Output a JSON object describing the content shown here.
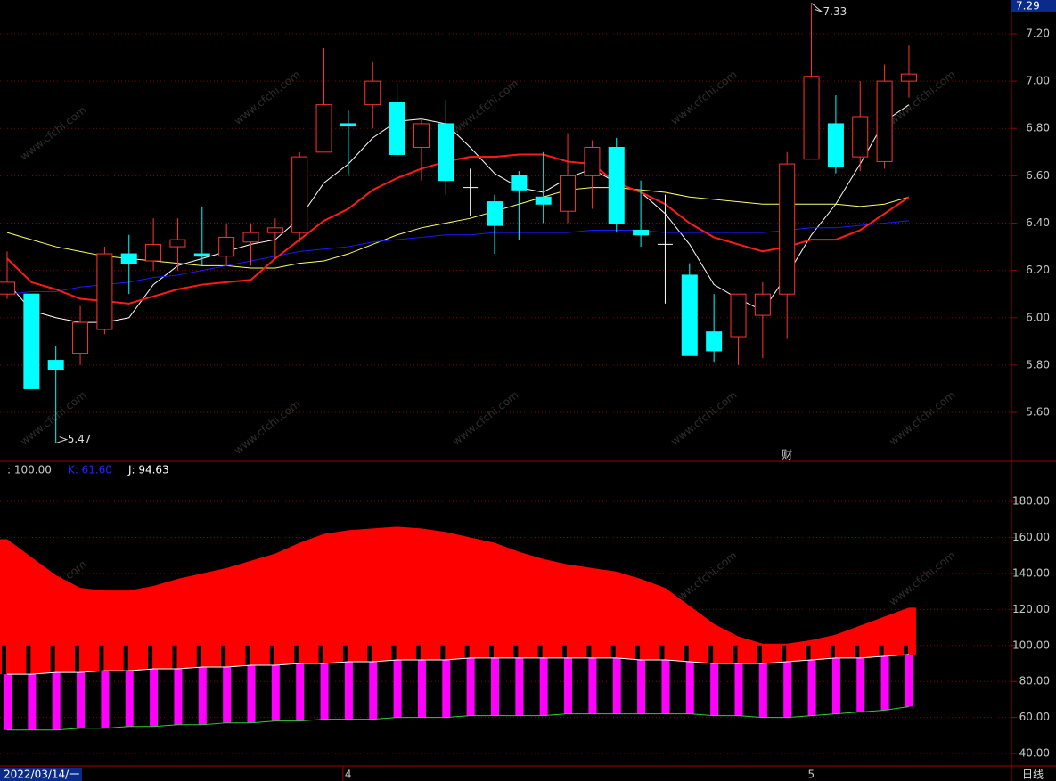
{
  "chart_data": [
    {
      "type": "candlestick",
      "open": [
        6.1,
        6.1,
        5.82,
        5.85,
        5.95,
        6.27,
        6.24,
        6.3,
        6.27,
        6.26,
        6.32,
        6.36,
        6.36,
        6.7,
        6.82,
        6.9,
        6.91,
        6.72,
        6.82,
        6.55,
        6.49,
        6.6,
        6.51,
        6.45,
        6.6,
        6.72,
        6.37,
        6.31,
        6.18,
        5.94,
        5.92,
        6.01,
        6.1,
        6.67,
        6.82,
        6.68,
        6.66,
        7.0
      ],
      "high": [
        6.28,
        6.1,
        5.88,
        6.05,
        6.3,
        6.35,
        6.42,
        6.42,
        6.47,
        6.4,
        6.4,
        6.42,
        6.7,
        7.14,
        6.88,
        7.08,
        6.99,
        6.84,
        6.92,
        6.63,
        6.52,
        6.62,
        6.7,
        6.78,
        6.75,
        6.76,
        6.58,
        6.52,
        6.23,
        6.1,
        6.1,
        6.15,
        6.7,
        7.33,
        6.94,
        7.0,
        7.07,
        7.15
      ],
      "low": [
        6.08,
        5.7,
        5.47,
        5.8,
        5.93,
        6.1,
        6.2,
        6.2,
        6.22,
        6.22,
        6.22,
        6.25,
        6.32,
        6.7,
        6.6,
        6.8,
        6.68,
        6.58,
        6.52,
        6.43,
        6.27,
        6.33,
        6.4,
        6.4,
        6.46,
        6.36,
        6.3,
        6.06,
        5.84,
        5.81,
        5.8,
        5.83,
        5.91,
        6.67,
        6.61,
        6.62,
        6.63,
        6.93
      ],
      "close": [
        6.15,
        5.7,
        5.78,
        5.98,
        6.27,
        6.23,
        6.31,
        6.33,
        6.26,
        6.34,
        6.36,
        6.38,
        6.68,
        6.9,
        6.81,
        7.0,
        6.69,
        6.82,
        6.58,
        6.55,
        6.39,
        6.54,
        6.48,
        6.6,
        6.72,
        6.4,
        6.35,
        6.31,
        5.84,
        5.86,
        6.1,
        6.1,
        6.65,
        7.02,
        6.64,
        6.85,
        7.0,
        7.03
      ],
      "up_color": "#ff3232",
      "down_color": "#00ffff",
      "flat_color": "#ffffff",
      "series": [
        {
          "color": "#ffffff",
          "width": 1,
          "values": [
            6.15,
            6.03,
            6.0,
            5.98,
            5.98,
            6.0,
            6.14,
            6.22,
            6.25,
            6.28,
            6.31,
            6.33,
            6.42,
            6.57,
            6.65,
            6.76,
            6.83,
            6.84,
            6.82,
            6.72,
            6.61,
            6.55,
            6.53,
            6.59,
            6.63,
            6.57,
            6.53,
            6.44,
            6.31,
            6.14,
            6.08,
            6.03,
            6.18,
            6.35,
            6.48,
            6.65,
            6.83,
            6.9
          ]
        },
        {
          "color": "#ffff66",
          "width": 1,
          "values": [
            6.36,
            6.33,
            6.3,
            6.28,
            6.26,
            6.25,
            6.24,
            6.23,
            6.22,
            6.22,
            6.21,
            6.21,
            6.23,
            6.24,
            6.27,
            6.31,
            6.35,
            6.38,
            6.4,
            6.42,
            6.45,
            6.48,
            6.51,
            6.54,
            6.55,
            6.55,
            6.54,
            6.53,
            6.51,
            6.5,
            6.49,
            6.48,
            6.48,
            6.48,
            6.48,
            6.47,
            6.48,
            6.51
          ]
        },
        {
          "color": "#1a1aff",
          "width": 1,
          "values": [
            6.1,
            6.11,
            6.11,
            6.13,
            6.14,
            6.15,
            6.17,
            6.18,
            6.2,
            6.22,
            6.24,
            6.26,
            6.28,
            6.29,
            6.3,
            6.32,
            6.33,
            6.34,
            6.35,
            6.35,
            6.36,
            6.36,
            6.36,
            6.36,
            6.37,
            6.37,
            6.37,
            6.36,
            6.36,
            6.36,
            6.36,
            6.36,
            6.37,
            6.38,
            6.38,
            6.39,
            6.4,
            6.41
          ]
        },
        {
          "color": "#ff1a1a",
          "width": 2,
          "values": [
            6.25,
            6.15,
            6.12,
            6.08,
            6.07,
            6.06,
            6.09,
            6.12,
            6.14,
            6.15,
            6.16,
            6.25,
            6.33,
            6.41,
            6.46,
            6.54,
            6.59,
            6.63,
            6.66,
            6.68,
            6.68,
            6.69,
            6.69,
            6.66,
            6.65,
            6.57,
            6.53,
            6.48,
            6.4,
            6.34,
            6.31,
            6.28,
            6.3,
            6.33,
            6.33,
            6.37,
            6.44,
            6.51
          ]
        }
      ],
      "annotations": [
        {
          "text": "7.33",
          "index": 33,
          "value": 7.33
        },
        {
          "text": "5.47",
          "index": 2,
          "value": 5.47
        }
      ],
      "event_marker": {
        "text": "财",
        "index": 32
      },
      "price_tag": "7.29",
      "ylim": [
        5.393,
        7.343
      ],
      "yticks": [
        {
          "value": 5.6,
          "label": "5.60"
        },
        {
          "value": 5.8,
          "label": "5.80"
        },
        {
          "value": 6.0,
          "label": "6.00"
        },
        {
          "value": 6.2,
          "label": "6.20"
        },
        {
          "value": 6.4,
          "label": "6.40"
        },
        {
          "value": 6.6,
          "label": "6.60"
        },
        {
          "value": 6.8,
          "label": "6.80"
        },
        {
          "value": 7.0,
          "label": "7.00"
        },
        {
          "value": 7.2,
          "label": "7.20"
        }
      ],
      "grid": true,
      "watermark": "www.cfchi.com"
    },
    {
      "type": "area",
      "header_labels": [
        {
          "text": ": 100.00",
          "color": "#c8c8c8"
        },
        {
          "text": "K: 61.60",
          "color": "#2323ff"
        },
        {
          "text": "J: 94.63",
          "color": "#ffffff"
        }
      ],
      "categories": [
        "2022/03/14/一",
        null,
        null,
        null,
        null,
        null,
        null,
        null,
        null,
        null,
        null,
        null,
        null,
        null,
        "4",
        null,
        null,
        null,
        null,
        null,
        null,
        null,
        null,
        null,
        null,
        null,
        null,
        null,
        null,
        null,
        null,
        null,
        null,
        "5",
        null,
        null,
        null,
        null
      ],
      "area": {
        "color": "#ff0000",
        "values": [
          159,
          149,
          139,
          132,
          130.5,
          130.5,
          133,
          137,
          140,
          143,
          147,
          151,
          157,
          162,
          164,
          165,
          166,
          165,
          163,
          160,
          157,
          152,
          148,
          145,
          143,
          141,
          137,
          132,
          122,
          112,
          105,
          101,
          101,
          103,
          106,
          111,
          116,
          121
        ]
      },
      "upper": {
        "color": "#ffffff",
        "values": [
          84,
          84,
          85,
          85,
          86,
          86,
          87,
          87,
          88,
          88,
          89,
          89,
          90,
          90,
          91,
          91,
          92,
          92,
          92,
          93,
          93,
          93,
          93,
          93,
          93,
          93,
          92,
          92,
          91,
          90,
          90,
          90,
          91,
          92,
          93,
          93,
          94,
          95
        ]
      },
      "lower": {
        "color": "#33cc33",
        "values": [
          53,
          53,
          53,
          54,
          54,
          55,
          55,
          56,
          56,
          57,
          57,
          58,
          58,
          59,
          59,
          59,
          60,
          60,
          60,
          61,
          61,
          61,
          61,
          62,
          62,
          62,
          62,
          62,
          62,
          61,
          61,
          60,
          60,
          61,
          62,
          63,
          64,
          66
        ]
      },
      "bar_color": "#ff00ff",
      "reference": 100,
      "ylim": [
        33.1,
        201.3
      ],
      "yticks": [
        {
          "value": 40,
          "label": "40.00"
        },
        {
          "value": 60,
          "label": "60.00"
        },
        {
          "value": 80,
          "label": "80.00"
        },
        {
          "value": 100,
          "label": "100.00"
        },
        {
          "value": 120,
          "label": "120.00"
        },
        {
          "value": 140,
          "label": "140.00"
        },
        {
          "value": 160,
          "label": "160.00"
        },
        {
          "value": 180,
          "label": "180.00"
        }
      ],
      "grid": true,
      "period_label": "日线"
    }
  ]
}
